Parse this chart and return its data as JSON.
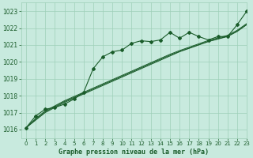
{
  "title": "Graphe pression niveau de la mer (hPa)",
  "bg_color": "#c8eade",
  "grid_color": "#9ecfb8",
  "line_color": "#1a5c2a",
  "text_color": "#1a5c2a",
  "xlim": [
    -0.5,
    23
  ],
  "ylim": [
    1015.5,
    1023.5
  ],
  "yticks": [
    1016,
    1017,
    1018,
    1019,
    1020,
    1021,
    1022,
    1023
  ],
  "xticks": [
    0,
    1,
    2,
    3,
    4,
    5,
    6,
    7,
    8,
    9,
    10,
    11,
    12,
    13,
    14,
    15,
    16,
    17,
    18,
    19,
    20,
    21,
    22,
    23
  ],
  "main_series": [
    1016.1,
    1016.8,
    1017.2,
    1017.3,
    1017.5,
    1017.8,
    1018.2,
    1019.6,
    1020.3,
    1020.6,
    1020.7,
    1021.1,
    1021.25,
    1021.2,
    1021.3,
    1021.75,
    1021.4,
    1021.75,
    1021.5,
    1021.3,
    1021.5,
    1021.5,
    1022.2,
    1023.0
  ],
  "line2": [
    1016.1,
    1016.55,
    1017.0,
    1017.3,
    1017.6,
    1017.85,
    1018.1,
    1018.35,
    1018.6,
    1018.85,
    1019.1,
    1019.35,
    1019.6,
    1019.85,
    1020.1,
    1020.35,
    1020.6,
    1020.8,
    1021.0,
    1021.2,
    1021.35,
    1021.5,
    1021.8,
    1022.2
  ],
  "line3": [
    1016.1,
    1016.6,
    1017.05,
    1017.35,
    1017.65,
    1017.9,
    1018.15,
    1018.4,
    1018.65,
    1018.9,
    1019.15,
    1019.4,
    1019.65,
    1019.9,
    1020.15,
    1020.4,
    1020.62,
    1020.82,
    1021.02,
    1021.22,
    1021.37,
    1021.52,
    1021.82,
    1022.22
  ],
  "line4": [
    1016.1,
    1016.65,
    1017.1,
    1017.4,
    1017.7,
    1017.95,
    1018.2,
    1018.45,
    1018.7,
    1018.95,
    1019.2,
    1019.45,
    1019.7,
    1019.95,
    1020.2,
    1020.45,
    1020.67,
    1020.87,
    1021.07,
    1021.27,
    1021.42,
    1021.57,
    1021.87,
    1022.27
  ]
}
